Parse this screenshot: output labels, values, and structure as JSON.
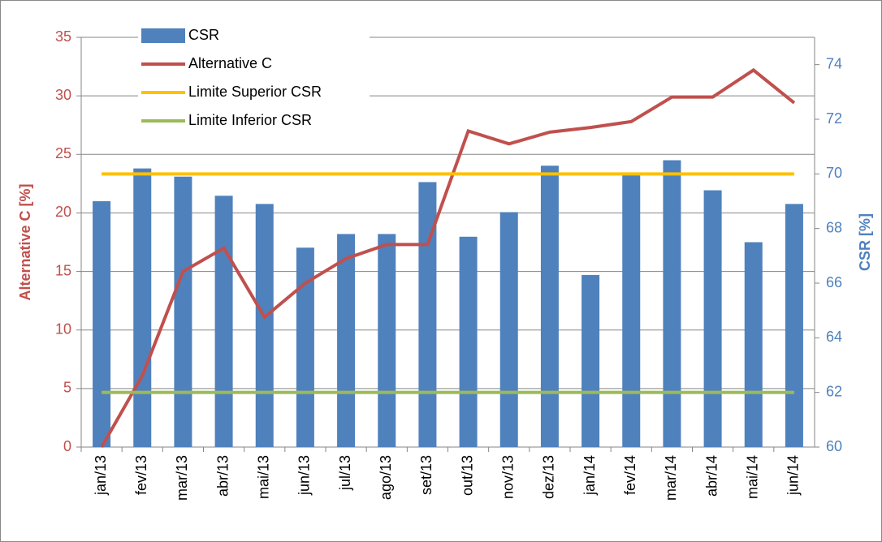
{
  "chart_data": {
    "type": "bar-line",
    "y_label": "Alternative C [%]",
    "y2_label": "CSR [%]",
    "categories": [
      "jan/13",
      "fev/13",
      "mar/13",
      "abr/13",
      "mai/13",
      "jun/13",
      "jul/13",
      "ago/13",
      "set/13",
      "out/13",
      "nov/13",
      "dez/13",
      "jan/14",
      "fev/14",
      "mar/14",
      "abr/14",
      "mai/14",
      "jun/14"
    ],
    "series": [
      {
        "name": "CSR",
        "type": "bar",
        "axis": "y2",
        "color": "#4f81bd",
        "values": [
          69.0,
          70.2,
          69.9,
          69.2,
          68.9,
          67.3,
          67.8,
          67.8,
          69.7,
          67.7,
          68.6,
          70.3,
          66.3,
          70.0,
          70.5,
          69.4,
          67.5,
          68.9
        ]
      },
      {
        "name": "Alternative C",
        "type": "line",
        "color": "#c0504d",
        "values": [
          0,
          6.1,
          15.0,
          17.0,
          11.1,
          14.0,
          16.1,
          17.3,
          17.3,
          27.0,
          25.9,
          26.9,
          27.3,
          27.8,
          29.9,
          29.9,
          32.2,
          29.4
        ]
      },
      {
        "name": "Limite Superior CSR",
        "type": "line",
        "axis": "y2",
        "color": "#ffc000",
        "values": [
          70,
          70,
          70,
          70,
          70,
          70,
          70,
          70,
          70,
          70,
          70,
          70,
          70,
          70,
          70,
          70,
          70,
          70
        ]
      },
      {
        "name": "Limite Inferior CSR",
        "type": "line",
        "axis": "y2",
        "color": "#9bbb59",
        "values": [
          62,
          62,
          62,
          62,
          62,
          62,
          62,
          62,
          62,
          62,
          62,
          62,
          62,
          62,
          62,
          62,
          62,
          62
        ]
      }
    ],
    "ylim": [
      0,
      35
    ],
    "yticks": [
      0,
      5,
      10,
      15,
      20,
      25,
      30,
      35
    ],
    "y2lim": [
      60,
      75
    ],
    "y2ticks": [
      60,
      62,
      64,
      66,
      68,
      70,
      72,
      74
    ],
    "grid": true,
    "legend": "top-left",
    "y_color": "#c0504d",
    "y2_color": "#4f81bd"
  }
}
